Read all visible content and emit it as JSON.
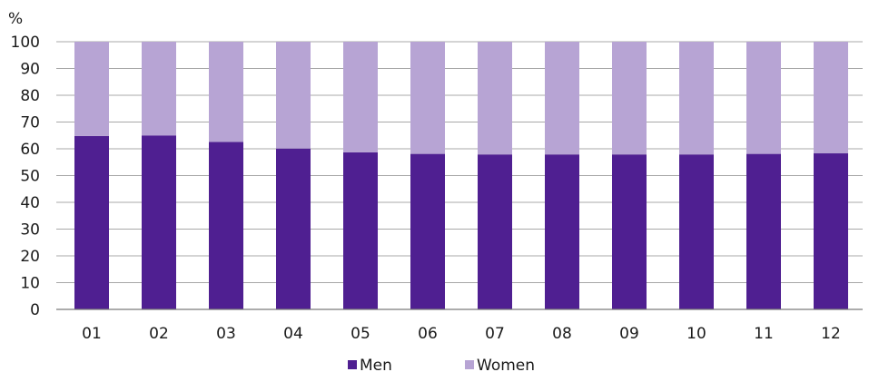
{
  "chart_data": {
    "type": "bar",
    "stacked": true,
    "title": "",
    "xlabel": "",
    "ylabel": "%",
    "ylim": [
      0,
      100
    ],
    "yticks": [
      0,
      10,
      20,
      30,
      40,
      50,
      60,
      70,
      80,
      90,
      100
    ],
    "grid": true,
    "legend": "bottom",
    "categories": [
      "01",
      "02",
      "03",
      "04",
      "05",
      "06",
      "07",
      "08",
      "09",
      "10",
      "11",
      "12"
    ],
    "series": [
      {
        "name": "Men",
        "color": "#4f1f91",
        "values": [
          64.8,
          65.0,
          62.6,
          60.1,
          58.7,
          58.1,
          57.9,
          57.9,
          57.9,
          57.9,
          58.1,
          58.3
        ]
      },
      {
        "name": "Women",
        "color": "#b7a4d4",
        "values": [
          35.2,
          35.0,
          37.4,
          39.9,
          41.3,
          41.9,
          42.1,
          42.1,
          42.1,
          42.1,
          41.9,
          41.7
        ]
      }
    ]
  }
}
